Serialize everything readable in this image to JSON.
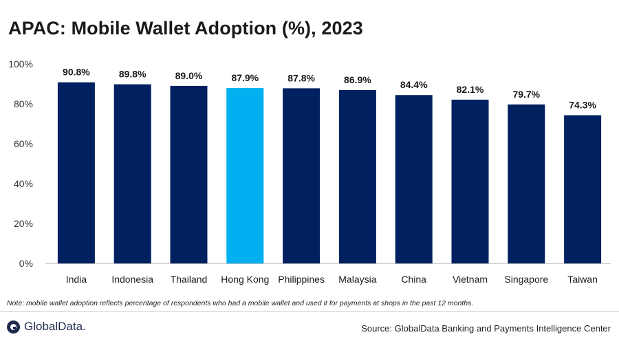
{
  "header": {
    "title": "APAC: Mobile Wallet Adoption (%), 2023"
  },
  "chart_data": {
    "type": "bar",
    "title": "APAC: Mobile Wallet Adoption (%), 2023",
    "xlabel": "",
    "ylabel": "",
    "categories": [
      "India",
      "Indonesia",
      "Thailand",
      "Hong Kong",
      "Philippines",
      "Malaysia",
      "China",
      "Vietnam",
      "Singapore",
      "Taiwan"
    ],
    "values": [
      90.8,
      89.8,
      89.0,
      87.9,
      87.8,
      86.9,
      84.4,
      82.1,
      79.7,
      74.3
    ],
    "data_labels": [
      "90.8%",
      "89.8%",
      "89.0%",
      "87.9%",
      "87.8%",
      "86.9%",
      "84.4%",
      "82.1%",
      "79.7%",
      "74.3%"
    ],
    "ylim": [
      0,
      100
    ],
    "yticks": [
      0,
      20,
      40,
      60,
      80,
      100
    ],
    "ytick_labels": [
      "0%",
      "20%",
      "40%",
      "60%",
      "80%",
      "100%"
    ],
    "grid": false,
    "legend": "none",
    "colors": {
      "default_bar": "#002060",
      "highlight_bar": "#00b0f0",
      "highlight_category": "Hong Kong"
    }
  },
  "footer": {
    "note": "Note: mobile wallet adoption reflects percentage of respondents who had a mobile wallet and used it for payments at shops in the past 12 months.",
    "brand": "GlobalData.",
    "source": "Source: GlobalData Banking and Payments Intelligence Center"
  }
}
